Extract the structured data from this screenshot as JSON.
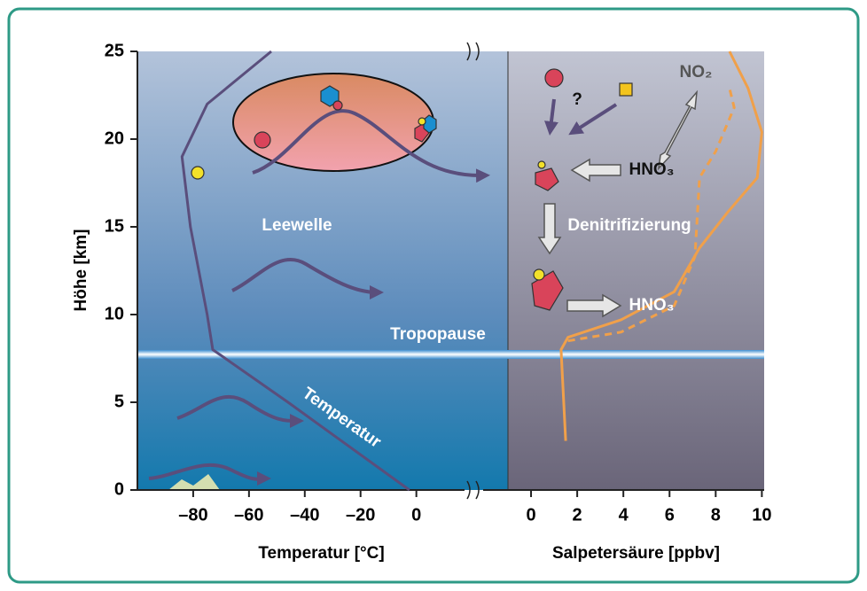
{
  "chart_data": [
    {
      "type": "line",
      "ylabel": "Höhe [km]",
      "xlabel": "Temperatur [°C]",
      "ylim": [
        0,
        25
      ],
      "yticks": [
        0,
        5,
        10,
        15,
        20,
        25
      ],
      "xlim": [
        -100,
        16
      ],
      "xticks": [
        {
          "value": -80,
          "label": "–80"
        },
        {
          "value": -60,
          "label": "–60"
        },
        {
          "value": -40,
          "label": "–40"
        },
        {
          "value": -20,
          "label": "–20"
        },
        0
      ],
      "series": [
        {
          "name": "Temperatur",
          "color": "#5a4e7c",
          "style": "solid",
          "x": [
            -2.5,
            -46,
            -73,
            -75,
            -81,
            -84,
            -75,
            -52
          ],
          "y": [
            0,
            5,
            8,
            10,
            15,
            19,
            22,
            25
          ]
        }
      ],
      "annotations": [
        "Leewelle",
        "Tropopause"
      ]
    },
    {
      "type": "line",
      "xlabel": "Salpetersäure [ppbv]",
      "ylim": [
        0,
        25
      ],
      "xlim": [
        -1,
        10.1
      ],
      "xticks": [
        0,
        2,
        4,
        6,
        8,
        10
      ],
      "series": [
        {
          "color": "#f0a04a",
          "style": "solid",
          "x": [
            1.5,
            1.3,
            1.6,
            3.9,
            6.2,
            7.3,
            8.5,
            9.8,
            10.0,
            9.4,
            8.6
          ],
          "y": [
            2.8,
            8,
            8.7,
            9.7,
            11.3,
            13.8,
            15.8,
            17.8,
            20.4,
            22.9,
            25
          ]
        },
        {
          "color": "#f0a04a",
          "style": "dashed",
          "x": [
            1.6,
            3.9,
            6.2,
            7.1,
            7.3,
            8.0,
            8.8,
            8.6
          ],
          "y": [
            8.5,
            9.0,
            10.5,
            13.3,
            17.8,
            19.3,
            21.8,
            22.9
          ]
        }
      ],
      "annotations": [
        "?",
        "NO₂",
        "HNO₃",
        "Denitrifizierung",
        "HNO₃"
      ]
    }
  ]
}
